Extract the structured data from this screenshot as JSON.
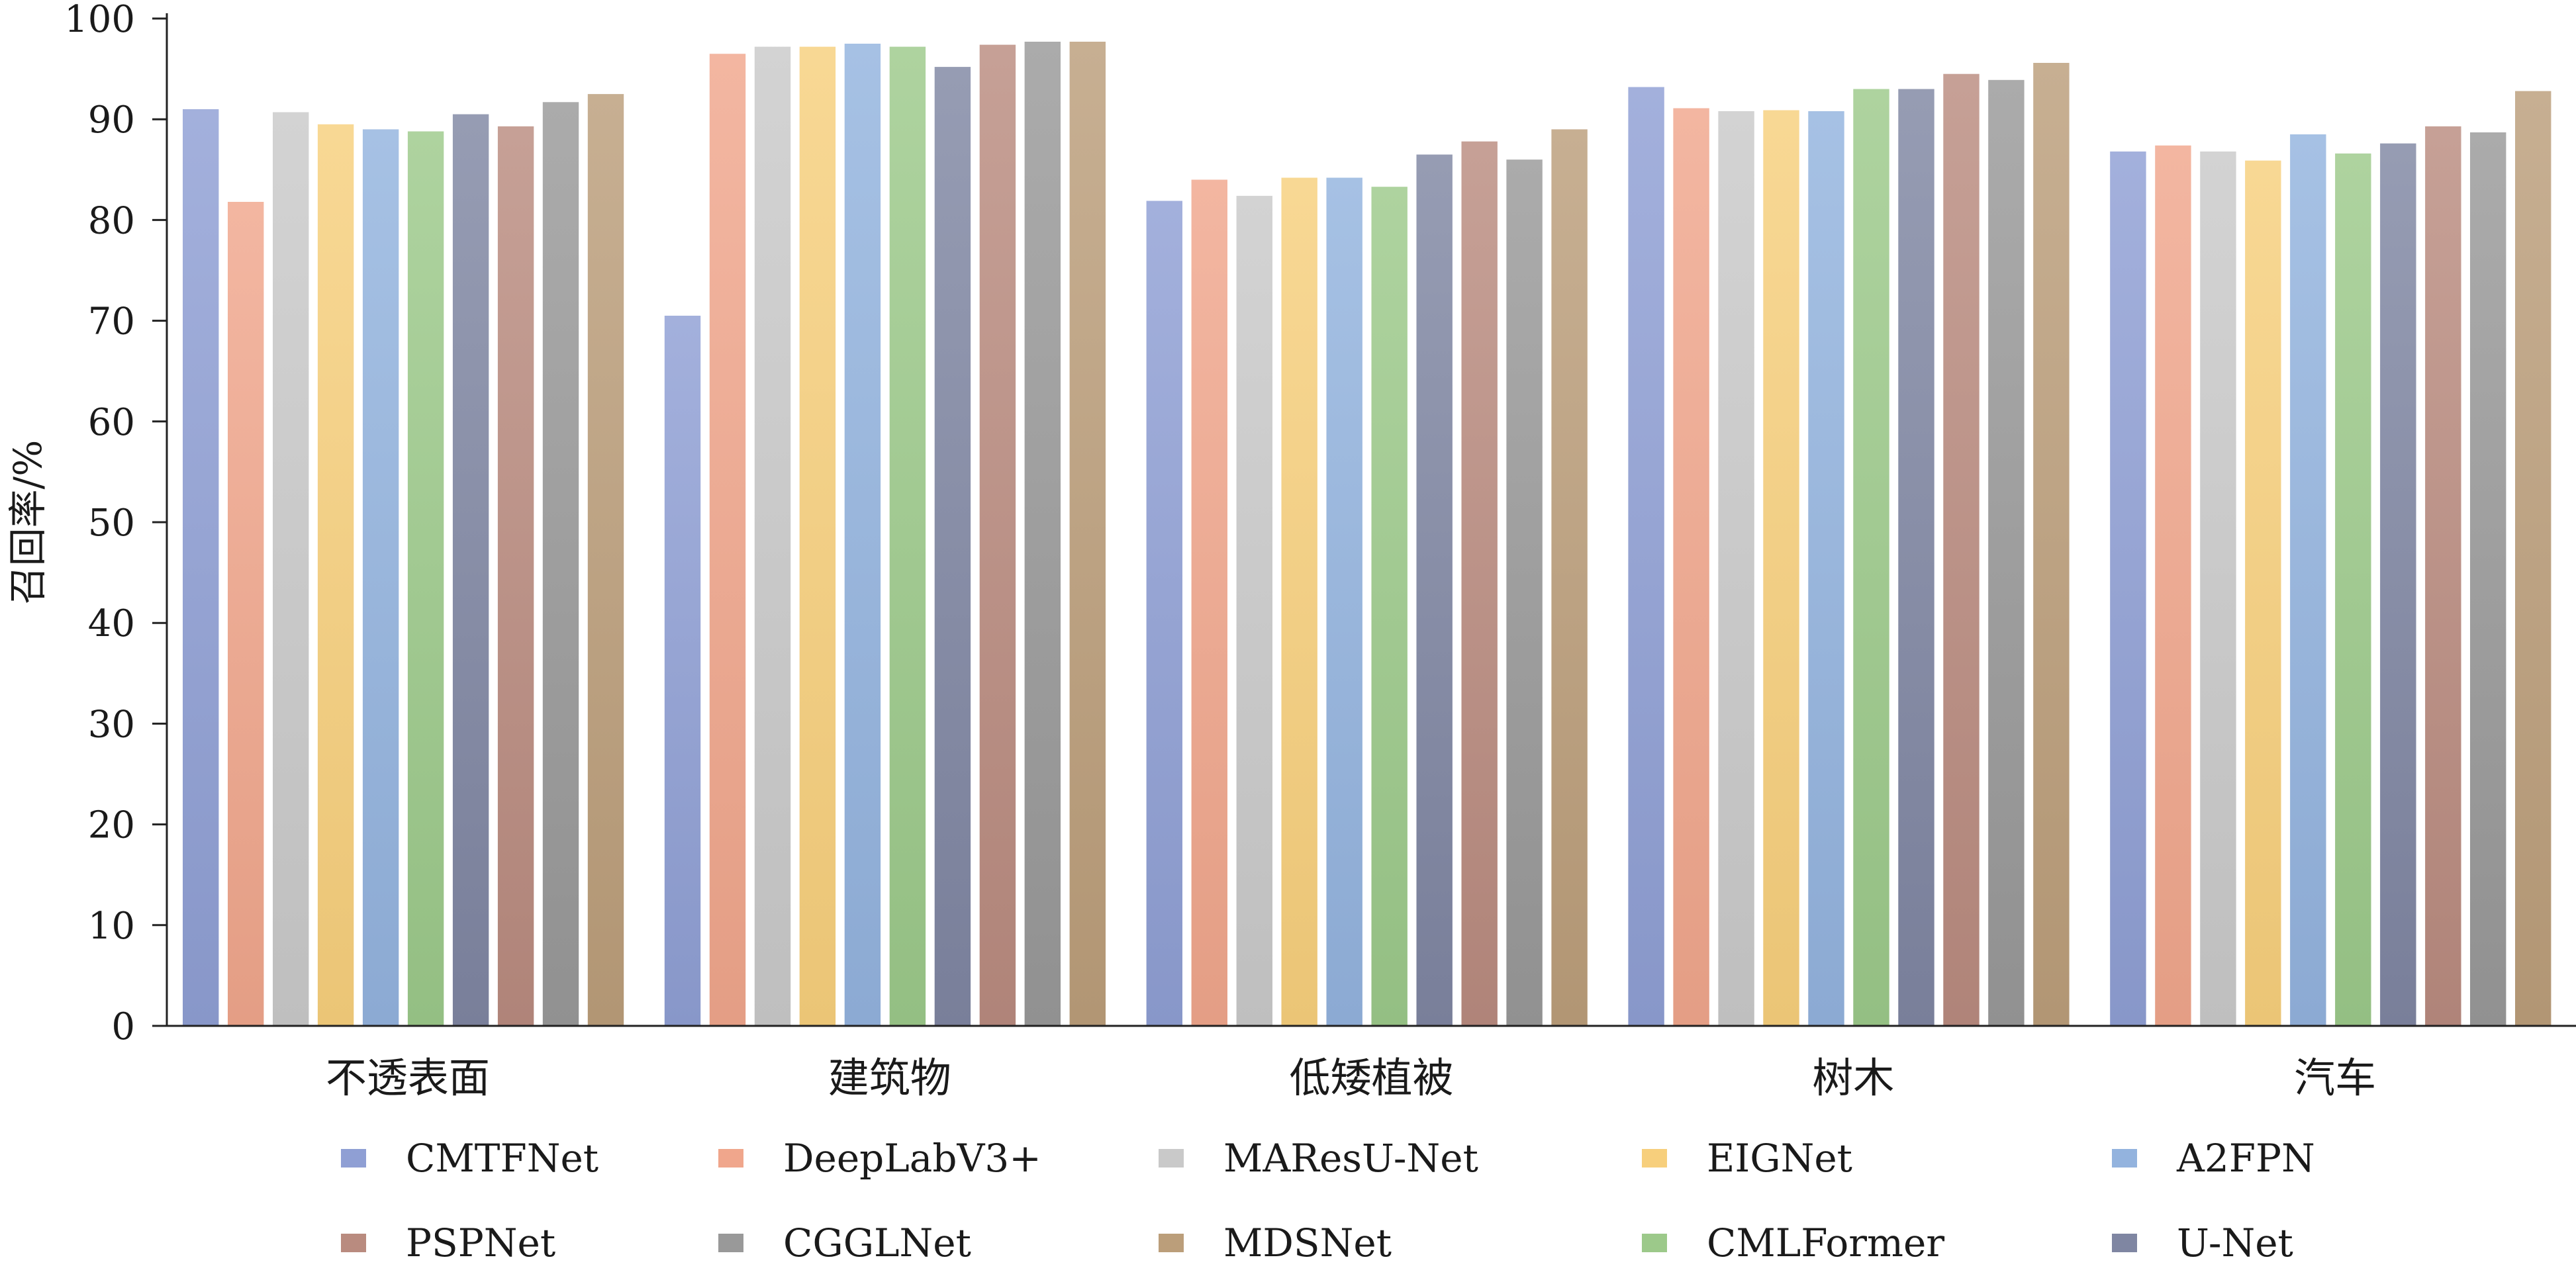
{
  "chart_data": {
    "type": "bar",
    "ylabel": "召回率/%",
    "ylim": [
      0,
      100
    ],
    "yticks": [
      0,
      10,
      20,
      30,
      40,
      50,
      60,
      70,
      80,
      90,
      100
    ],
    "grid": false,
    "legend_position": "bottom",
    "categories": [
      "不透表面",
      "建筑物",
      "低矮植被",
      "树木",
      "汽车"
    ],
    "series": [
      {
        "name": "CMTFNet",
        "color": "#8f9fd4",
        "values": [
          91.0,
          70.5,
          81.9,
          93.2,
          86.8
        ]
      },
      {
        "name": "DeepLabV3+",
        "color": "#f0a68c",
        "values": [
          81.8,
          96.5,
          84.0,
          91.1,
          87.4
        ]
      },
      {
        "name": "MAResU-Net",
        "color": "#c9c9c9",
        "values": [
          90.7,
          97.2,
          82.4,
          90.8,
          86.8
        ]
      },
      {
        "name": "EIGNet",
        "color": "#f7cf7c",
        "values": [
          89.5,
          97.2,
          84.2,
          90.9,
          85.9
        ]
      },
      {
        "name": "A2FPN",
        "color": "#93b3de",
        "values": [
          89.0,
          97.5,
          84.2,
          90.8,
          88.5
        ]
      },
      {
        "name": "CMLFormer",
        "color": "#9cc98a",
        "values": [
          88.8,
          97.2,
          83.3,
          93.0,
          86.6
        ]
      },
      {
        "name": "U-Net",
        "color": "#7f86a2",
        "values": [
          90.5,
          95.2,
          86.5,
          93.0,
          87.6
        ]
      },
      {
        "name": "PSPNet",
        "color": "#b98b7f",
        "values": [
          89.3,
          97.4,
          87.8,
          94.5,
          89.3
        ]
      },
      {
        "name": "CGGLNet",
        "color": "#999999",
        "values": [
          91.7,
          97.7,
          86.0,
          93.9,
          88.7
        ]
      },
      {
        "name": "MDSNet",
        "color": "#bb9e7a",
        "values": [
          92.5,
          97.7,
          89.0,
          95.6,
          92.8
        ]
      }
    ],
    "legend_order": [
      "CMTFNet",
      "DeepLabV3+",
      "MAResU-Net",
      "EIGNet",
      "A2FPN",
      "PSPNet",
      "CGGLNet",
      "MDSNet",
      "CMLFormer",
      "U-Net"
    ]
  }
}
